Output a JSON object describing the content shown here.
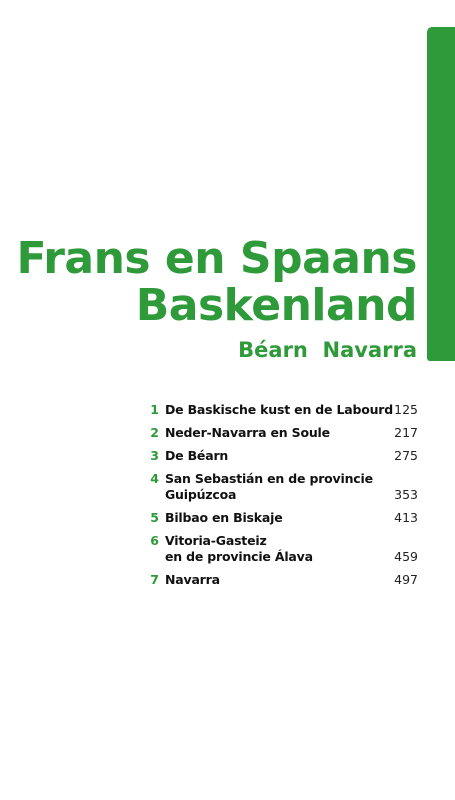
{
  "header": {
    "title_lines": [
      "Frans en Spaans",
      "Baskenland"
    ],
    "subtitle": "Béarn  Navarra"
  },
  "contents": [
    {
      "number": 1,
      "lines": [
        "De Baskische kust en de Labourd"
      ],
      "page": 125
    },
    {
      "number": 2,
      "lines": [
        "Neder-Navarra en Soule"
      ],
      "page": 217
    },
    {
      "number": 3,
      "lines": [
        "De Béarn"
      ],
      "page": 275
    },
    {
      "number": 4,
      "lines": [
        "San Sebastián en de provincie",
        "Guipúzcoa"
      ],
      "page": 353
    },
    {
      "number": 5,
      "lines": [
        "Bilbao en Biskaje"
      ],
      "page": 413
    },
    {
      "number": 6,
      "lines": [
        "Vitoria-Gasteiz",
        "en de provincie Álava"
      ],
      "page": 459
    },
    {
      "number": 7,
      "lines": [
        "Navarra"
      ],
      "page": 497
    }
  ]
}
